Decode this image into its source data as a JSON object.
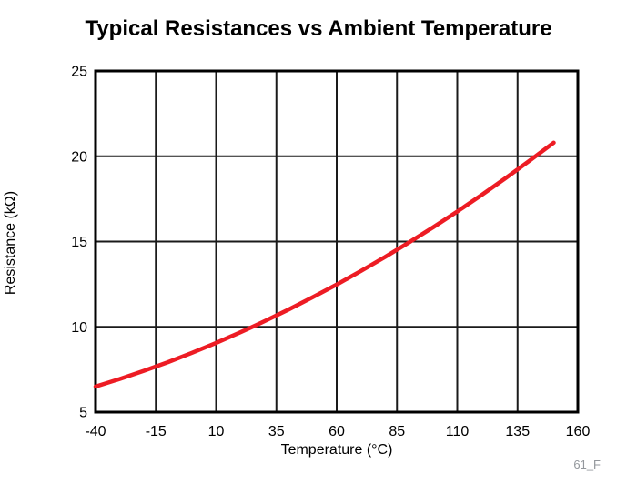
{
  "page": {
    "watermark": "61_F"
  },
  "chart_data": {
    "type": "line",
    "title": "Typical Resistances vs Ambient Temperature",
    "xlabel": "Temperature (°C)",
    "ylabel": "Resistance (kΩ)",
    "xlim": [
      -40,
      160
    ],
    "ylim": [
      5,
      25
    ],
    "x_ticks": [
      -40,
      -15,
      10,
      35,
      60,
      85,
      110,
      135,
      160
    ],
    "y_ticks": [
      5,
      10,
      15,
      20,
      25
    ],
    "grid": true,
    "legend_position": "none",
    "series": [
      {
        "name": "Typical resistance",
        "color": "#ed1c24",
        "x": [
          -40,
          -30,
          -20,
          -10,
          0,
          10,
          20,
          25,
          30,
          40,
          50,
          60,
          70,
          80,
          90,
          100,
          110,
          120,
          130,
          140,
          150
        ],
        "y": [
          6.5,
          6.94,
          7.42,
          7.93,
          8.48,
          9.06,
          9.68,
          10.0,
          10.33,
          11.01,
          11.73,
          12.48,
          13.27,
          14.09,
          14.95,
          15.84,
          16.76,
          17.72,
          18.71,
          19.74,
          20.8
        ]
      }
    ]
  },
  "style": {
    "axis_color": "#000000",
    "grid_color": "#1a1a1a",
    "curve_color": "#ed1c24",
    "watermark_color": "#93979c"
  }
}
